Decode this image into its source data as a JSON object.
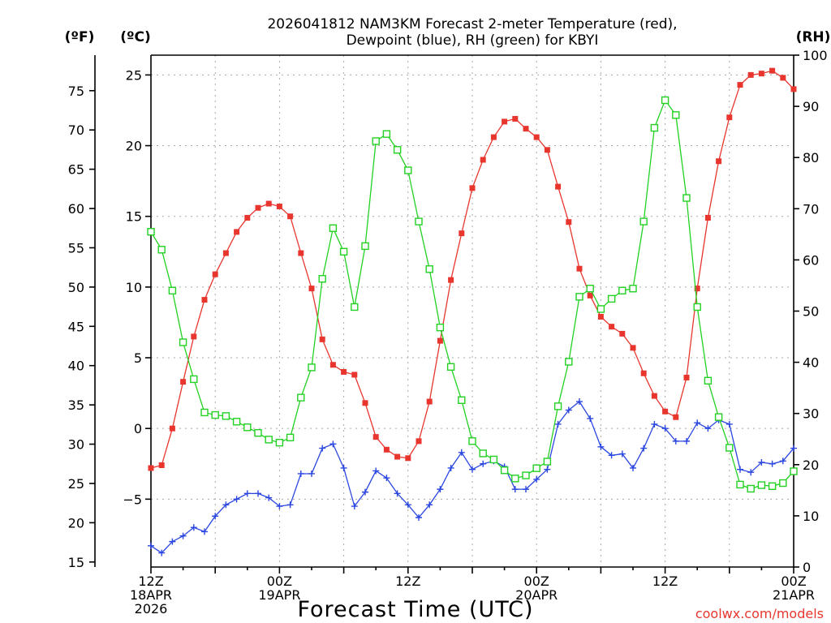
{
  "chart_data": {
    "type": "line",
    "title": "2026041812 NAM3KM Forecast 2-meter Temperature (red),",
    "subtitle": "Dewpoint (blue), RH (green) for KBYI",
    "xlabel": "Forecast Time (UTC)",
    "credit": "coolwx.com/models",
    "unit_labels": {
      "f": "(ºF)",
      "c": "(ºC)",
      "rh": "(RH)"
    },
    "x_range_hours": [
      0,
      60
    ],
    "c_range": [
      -9.8,
      26.4
    ],
    "rh_range": [
      0,
      100
    ],
    "f_ticks": [
      15,
      20,
      25,
      30,
      35,
      40,
      45,
      50,
      55,
      60,
      65,
      70,
      75
    ],
    "c_ticks": [
      -5,
      0,
      5,
      10,
      15,
      20,
      25
    ],
    "rh_ticks": [
      0,
      10,
      20,
      30,
      40,
      50,
      60,
      70,
      80,
      90,
      100
    ],
    "x_ticks": [
      {
        "hour": 0,
        "lines": [
          "12Z",
          "18APR",
          "2026"
        ]
      },
      {
        "hour": 12,
        "lines": [
          "00Z",
          "19APR"
        ]
      },
      {
        "hour": 24,
        "lines": [
          "12Z"
        ]
      },
      {
        "hour": 36,
        "lines": [
          "00Z",
          "20APR"
        ]
      },
      {
        "hour": 48,
        "lines": [
          "12Z"
        ]
      },
      {
        "hour": 60,
        "lines": [
          "00Z",
          "21APR"
        ]
      }
    ],
    "series": [
      {
        "name": "2-meter Temperature",
        "color": "#e8362e",
        "marker": "filled-square",
        "axis": "c",
        "hours": [
          0,
          1,
          2,
          3,
          4,
          5,
          6,
          7,
          8,
          9,
          10,
          11,
          12,
          13,
          14,
          15,
          16,
          17,
          18,
          19,
          20,
          21,
          22,
          23,
          24,
          25,
          26,
          27,
          28,
          29,
          30,
          31,
          32,
          33,
          34,
          35,
          36,
          37,
          38,
          39,
          40,
          41,
          42,
          43,
          44,
          45,
          46,
          47,
          48,
          49,
          50,
          51,
          52,
          53,
          54,
          55,
          56,
          57,
          58,
          59,
          60
        ],
        "values": [
          -2.8,
          -2.6,
          0.0,
          3.3,
          6.5,
          9.1,
          10.9,
          12.4,
          13.9,
          14.9,
          15.6,
          15.9,
          15.7,
          15.0,
          12.4,
          9.9,
          6.3,
          4.5,
          4.0,
          3.8,
          1.8,
          -0.6,
          -1.5,
          -2.0,
          -2.1,
          -0.9,
          1.9,
          6.2,
          10.5,
          13.8,
          17.0,
          19.0,
          20.6,
          21.7,
          21.9,
          21.2,
          20.6,
          19.7,
          17.1,
          14.6,
          11.3,
          9.4,
          7.9,
          7.2,
          6.7,
          5.7,
          3.9,
          2.3,
          1.2,
          0.8,
          3.6,
          9.9,
          14.9,
          18.9,
          22.0,
          24.3,
          25.0,
          25.1,
          25.3,
          24.8,
          24.0
        ]
      },
      {
        "name": "Dewpoint",
        "color": "#2a46e0",
        "marker": "plus",
        "axis": "c",
        "hours": [
          0,
          1,
          2,
          3,
          4,
          5,
          6,
          7,
          8,
          9,
          10,
          11,
          12,
          13,
          14,
          15,
          16,
          17,
          18,
          19,
          20,
          21,
          22,
          23,
          24,
          25,
          26,
          27,
          28,
          29,
          30,
          31,
          32,
          33,
          34,
          35,
          36,
          37,
          38,
          39,
          40,
          41,
          42,
          43,
          44,
          45,
          46,
          47,
          48,
          49,
          50,
          51,
          52,
          53,
          54,
          55,
          56,
          57,
          58,
          59,
          60
        ],
        "values": [
          -8.3,
          -8.8,
          -8.0,
          -7.6,
          -7.0,
          -7.3,
          -6.2,
          -5.4,
          -5.0,
          -4.6,
          -4.6,
          -4.9,
          -5.5,
          -5.4,
          -3.2,
          -3.2,
          -1.4,
          -1.1,
          -2.8,
          -5.5,
          -4.5,
          -3.0,
          -3.5,
          -4.6,
          -5.4,
          -6.3,
          -5.4,
          -4.3,
          -2.8,
          -1.7,
          -2.9,
          -2.5,
          -2.3,
          -2.7,
          -4.3,
          -4.3,
          -3.6,
          -2.9,
          0.3,
          1.3,
          1.9,
          0.7,
          -1.3,
          -1.9,
          -1.8,
          -2.8,
          -1.4,
          0.3,
          0.0,
          -0.9,
          -0.9,
          0.4,
          0.0,
          0.6,
          0.3,
          -2.9,
          -3.1,
          -2.4,
          -2.5,
          -2.3,
          -1.4
        ]
      },
      {
        "name": "RH",
        "color": "#22d122",
        "marker": "open-square",
        "axis": "rh",
        "hours": [
          0,
          1,
          2,
          3,
          4,
          5,
          6,
          7,
          8,
          9,
          10,
          11,
          12,
          13,
          14,
          15,
          16,
          17,
          18,
          19,
          20,
          21,
          22,
          23,
          24,
          25,
          26,
          27,
          28,
          29,
          30,
          31,
          32,
          33,
          34,
          35,
          36,
          37,
          38,
          39,
          40,
          41,
          42,
          43,
          44,
          45,
          46,
          47,
          48,
          49,
          50,
          51,
          52,
          53,
          54,
          55,
          56,
          57,
          58,
          59,
          60
        ],
        "values": [
          65.5,
          62.0,
          54.0,
          43.9,
          36.7,
          30.2,
          29.7,
          29.5,
          28.4,
          27.3,
          26.2,
          24.9,
          24.3,
          25.3,
          33.1,
          39.0,
          56.3,
          66.2,
          61.6,
          50.8,
          62.7,
          83.2,
          84.6,
          81.5,
          77.5,
          67.5,
          58.2,
          46.8,
          39.1,
          32.6,
          24.6,
          22.2,
          21.0,
          18.9,
          17.3,
          17.9,
          19.3,
          20.6,
          31.4,
          40.1,
          52.8,
          54.4,
          50.4,
          52.4,
          54.0,
          54.4,
          67.5,
          85.8,
          91.2,
          88.3,
          72.1,
          50.8,
          36.4,
          29.3,
          23.3,
          16.1,
          15.3,
          16.0,
          15.8,
          16.4,
          18.7
        ]
      }
    ]
  }
}
